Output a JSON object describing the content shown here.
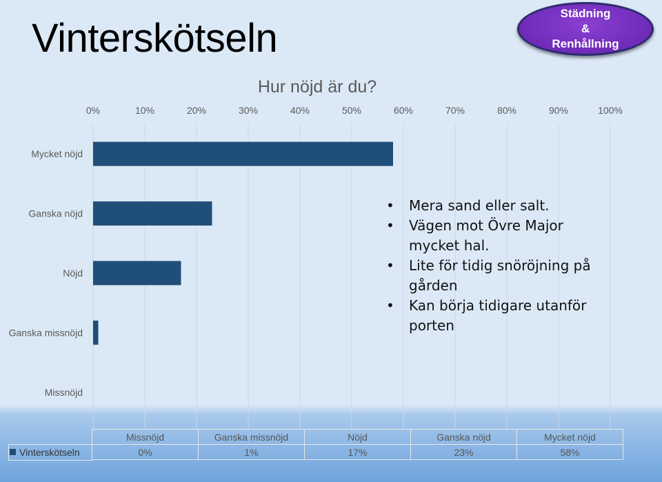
{
  "slide": {
    "title": "Vinterskötseln",
    "badge": {
      "line1": "Städning",
      "line2": "&",
      "line3": "Renhållning",
      "color": "#6f2bb8"
    }
  },
  "notes": [
    {
      "text": "Mera sand eller salt."
    },
    {
      "text": "Vägen mot Övre Major mycket hal."
    },
    {
      "text": "Lite för tidig snöröjning på gården"
    },
    {
      "text": "Kan börja tidigare utanför porten"
    }
  ],
  "chart_data": {
    "type": "bar",
    "orientation": "horizontal",
    "title": "Hur nöjd är du?",
    "categories": [
      "Missnöjd",
      "Ganska missnöjd",
      "Nöjd",
      "Ganska nöjd",
      "Mycket nöjd"
    ],
    "series": [
      {
        "name": "Vinterskötseln",
        "values": [
          0,
          1,
          17,
          23,
          58
        ],
        "color": "#1f4e79"
      }
    ],
    "xlim": [
      0,
      100
    ],
    "x_ticks": [
      "0%",
      "10%",
      "20%",
      "30%",
      "40%",
      "50%",
      "60%",
      "70%",
      "80%",
      "90%",
      "100%"
    ],
    "data_table": {
      "series_label": "Vinterskötseln",
      "values_display": [
        "0%",
        "1%",
        "17%",
        "23%",
        "58%"
      ]
    },
    "grid": true
  }
}
